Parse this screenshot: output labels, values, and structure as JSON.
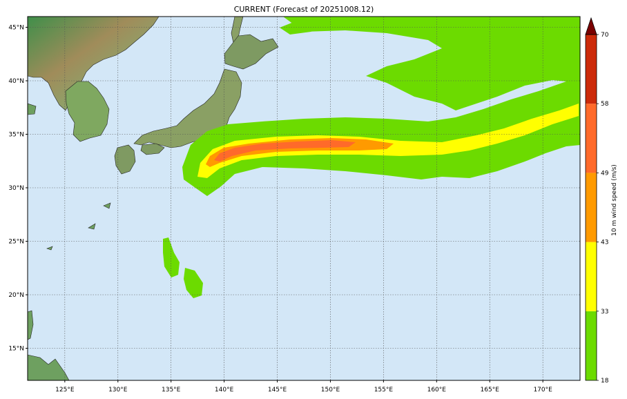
{
  "title": "CURRENT (Forecast of 20251008.12)",
  "colors": {
    "ocean": "#d3e7f7",
    "land": "#7aa86a",
    "band_18_33": "#6cdb00",
    "band_33_43": "#ffff00",
    "band_43_49": "#ff9a00",
    "band_49_58": "#ff6a2a",
    "band_58_70": "#cc2a0a",
    "extend_over": "#7a0000"
  },
  "map": {
    "lon_range": [
      121.5,
      173.5
    ],
    "lat_range": [
      12,
      46
    ],
    "lon_ticks": [
      {
        "value": 125,
        "label": "125°E"
      },
      {
        "value": 130,
        "label": "130°E"
      },
      {
        "value": 135,
        "label": "135°E"
      },
      {
        "value": 140,
        "label": "140°E"
      },
      {
        "value": 145,
        "label": "145°E"
      },
      {
        "value": 150,
        "label": "150°E"
      },
      {
        "value": 155,
        "label": "155°E"
      },
      {
        "value": 160,
        "label": "160°E"
      },
      {
        "value": 165,
        "label": "165°E"
      },
      {
        "value": 170,
        "label": "170°E"
      }
    ],
    "lat_ticks": [
      {
        "value": 15,
        "label": "15°N"
      },
      {
        "value": 20,
        "label": "20°N"
      },
      {
        "value": 25,
        "label": "25°N"
      },
      {
        "value": 30,
        "label": "30°N"
      },
      {
        "value": 35,
        "label": "35°N"
      },
      {
        "value": 40,
        "label": "40°N"
      },
      {
        "value": 45,
        "label": "45°N"
      }
    ],
    "grid": true
  },
  "colorbar": {
    "label": "10 m wind speed (m/s)",
    "ticks": [
      {
        "value": 18,
        "label": "18"
      },
      {
        "value": 33,
        "label": "33"
      },
      {
        "value": 43,
        "label": "43"
      },
      {
        "value": 49,
        "label": "49"
      },
      {
        "value": 58,
        "label": "58"
      },
      {
        "value": 70,
        "label": "70"
      }
    ],
    "extend": "max"
  }
}
